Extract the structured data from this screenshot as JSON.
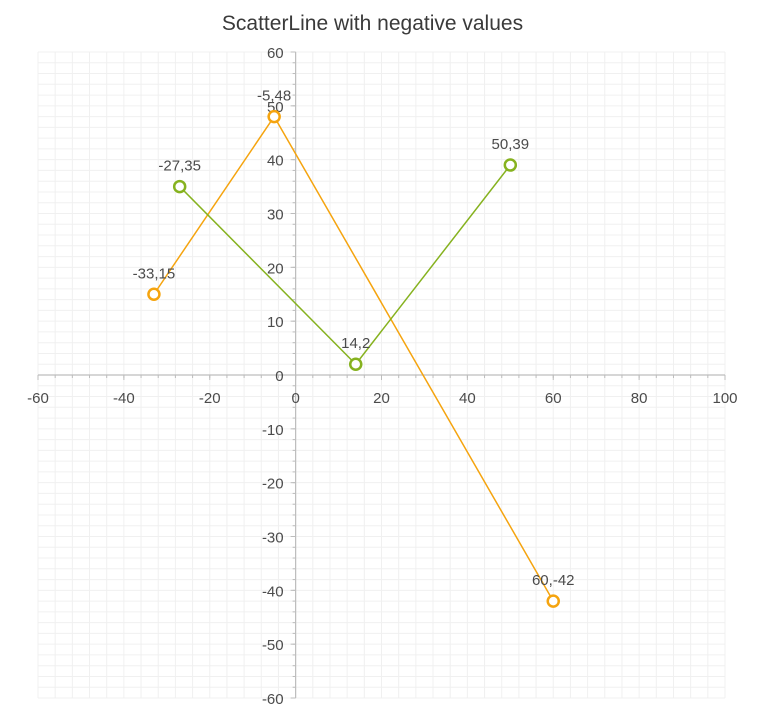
{
  "chart_data": {
    "type": "scatter",
    "title": "ScatterLine with negative values",
    "xlim": [
      -60,
      100
    ],
    "ylim": [
      -60,
      60
    ],
    "x_ticks": [
      -60,
      -40,
      -20,
      0,
      20,
      40,
      60,
      80,
      100
    ],
    "y_ticks": [
      -60,
      -50,
      -40,
      -30,
      -20,
      -10,
      0,
      10,
      20,
      30,
      40,
      50,
      60
    ],
    "grid": true,
    "legend": "none",
    "series": [
      {
        "color": "#f5a40f",
        "points": [
          {
            "x": -33,
            "y": 15,
            "label": "-33,15"
          },
          {
            "x": -5,
            "y": 48,
            "label": "-5,48"
          },
          {
            "x": 60,
            "y": -42,
            "label": "60,-42"
          }
        ]
      },
      {
        "color": "#86b21f",
        "points": [
          {
            "x": -27,
            "y": 35,
            "label": "-27,35"
          },
          {
            "x": 14,
            "y": 2,
            "label": "14,2"
          },
          {
            "x": 50,
            "y": 39,
            "label": "50,39"
          }
        ]
      }
    ]
  },
  "colors": {
    "grid_minor": "#f0f0f0",
    "axis": "#bdbdbd",
    "text": "#4b4b4b"
  }
}
